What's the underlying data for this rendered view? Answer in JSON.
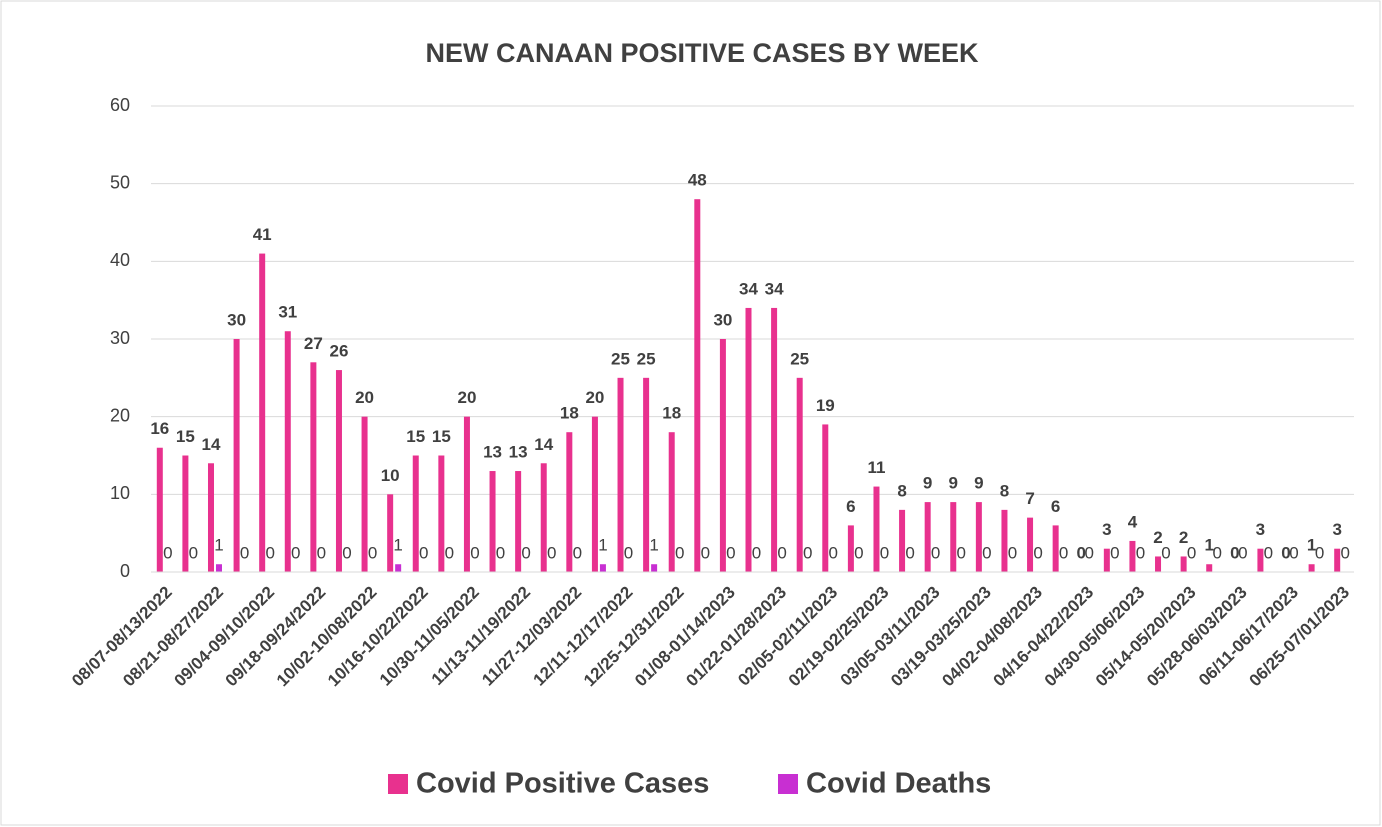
{
  "chart_data": {
    "type": "bar",
    "title": "NEW CANAAN POSITIVE CASES BY WEEK",
    "categories": [
      "08/07-08/13/2022",
      null,
      "08/21-08/27/2022",
      null,
      "09/04-09/10/2022",
      null,
      "09/18-09/24/2022",
      null,
      "10/02-10/08/2022",
      null,
      "10/16-10/22/2022",
      null,
      "10/30-11/05/2022",
      null,
      "11/13-11/19/2022",
      null,
      "11/27-12/03/2022",
      null,
      "12/11-12/17/2022",
      null,
      "12/25-12/31/2022",
      null,
      "01/08-01/14/2023",
      null,
      "01/22-01/28/2023",
      null,
      "02/05-02/11/2023",
      null,
      "02/19-02/25/2023",
      null,
      "03/05-03/11/2023",
      null,
      "03/19-03/25/2023",
      null,
      "04/02-04/08/2023",
      null,
      "04/16-04/22/2023",
      null,
      "04/30-05/06/2023",
      null,
      "05/14-05/20/2023",
      null,
      "05/28-06/03/2023",
      null,
      "06/11-06/17/2023",
      null,
      "06/25-07/01/2023"
    ],
    "series": [
      {
        "name": "Covid Positive Cases",
        "color": "#e8318e",
        "values": [
          16,
          15,
          14,
          30,
          41,
          31,
          27,
          26,
          20,
          10,
          15,
          15,
          20,
          13,
          13,
          14,
          18,
          20,
          25,
          25,
          18,
          48,
          30,
          34,
          34,
          25,
          19,
          6,
          11,
          8,
          9,
          9,
          9,
          8,
          7,
          6,
          0,
          3,
          4,
          2,
          2,
          1,
          0,
          3,
          0,
          1,
          3
        ]
      },
      {
        "name": "Covid Deaths",
        "color": "#c82fd2",
        "values": [
          0,
          0,
          1,
          0,
          0,
          0,
          0,
          0,
          0,
          1,
          0,
          0,
          0,
          0,
          0,
          0,
          0,
          1,
          0,
          1,
          0,
          0,
          0,
          0,
          0,
          0,
          0,
          0,
          0,
          0,
          0,
          0,
          0,
          0,
          0,
          0,
          0,
          0,
          0,
          0,
          0,
          0,
          0,
          0,
          0,
          0,
          0
        ]
      }
    ],
    "ylim": [
      0,
      60
    ],
    "yticks": [
      0,
      10,
      20,
      30,
      40,
      50,
      60
    ],
    "grid": true,
    "legend": "bottom"
  }
}
